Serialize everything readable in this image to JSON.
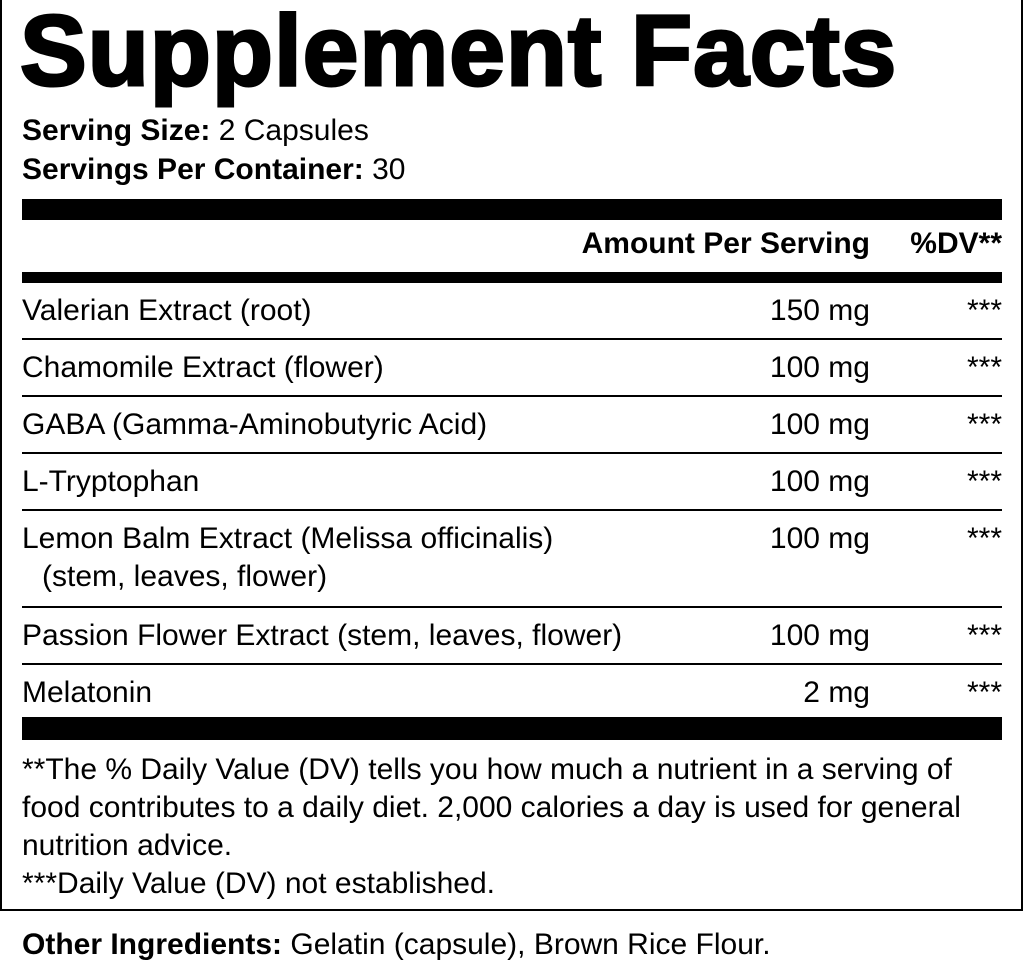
{
  "title": "Supplement Facts",
  "serving_size": {
    "label": "Serving Size:",
    "value": "2 Capsules"
  },
  "servings_per_container": {
    "label": "Servings Per Container:",
    "value": "30"
  },
  "header": {
    "amount": "Amount Per Serving",
    "dv": "%DV**"
  },
  "rows": [
    {
      "name": "Valerian Extract (root)",
      "amount": "150 mg",
      "dv": "***"
    },
    {
      "name": "Chamomile Extract (flower)",
      "amount": "100 mg",
      "dv": "***"
    },
    {
      "name": "GABA (Gamma-Aminobutyric Acid)",
      "amount": "100 mg",
      "dv": "***"
    },
    {
      "name": "L-Tryptophan",
      "amount": "100 mg",
      "dv": "***"
    },
    {
      "name": "Lemon Balm Extract (Melissa officinalis)",
      "sub": "(stem, leaves, flower)",
      "amount": "100 mg",
      "dv": "***"
    },
    {
      "name": "Passion Flower Extract (stem, leaves, flower)",
      "amount": "100 mg",
      "dv": "***"
    },
    {
      "name": "Melatonin",
      "amount": "2 mg",
      "dv": "***"
    }
  ],
  "footnotes": {
    "dv_note": "**The % Daily Value (DV) tells you how much a nutrient in a serving of food contributes to a daily diet. 2,000 calories a day is used for general nutrition advice.",
    "not_established": "***Daily Value (DV) not established."
  },
  "other_ingredients": {
    "label": "Other Ingredients:",
    "value": "Gelatin (capsule), Brown Rice Flour."
  }
}
